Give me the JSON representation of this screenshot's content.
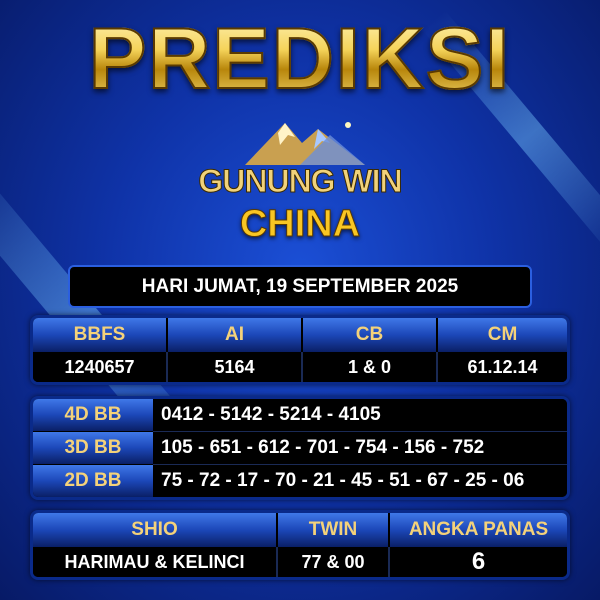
{
  "title": "PREDIKSI",
  "brand": "GUNUNG WIN",
  "market": "CHINA",
  "date": "HARI JUMAT, 19 SEPTEMBER 2025",
  "colors": {
    "gold": "#f4d27a",
    "blue": "#1b4fd6",
    "cell_bg": "#000000"
  },
  "main_table": {
    "headers": [
      "BBFS",
      "AI",
      "CB",
      "CM"
    ],
    "values": [
      "1240657",
      "5164",
      "1 & 0",
      "61.12.14"
    ]
  },
  "bb_table": [
    {
      "label": "4D BB",
      "value": "0412 - 5142 - 5214 - 4105"
    },
    {
      "label": "3D BB",
      "value": "105 - 651 - 612 - 701 - 754 - 156 - 752"
    },
    {
      "label": "2D BB",
      "value": "75 - 72 - 17 - 70 - 21 - 45 - 51 - 67 - 25 - 06"
    }
  ],
  "bottom_table": {
    "headers": [
      "SHIO",
      "TWIN",
      "ANGKA PANAS"
    ],
    "values": [
      "HARIMAU & KELINCI",
      "77 & 00",
      "6"
    ]
  }
}
